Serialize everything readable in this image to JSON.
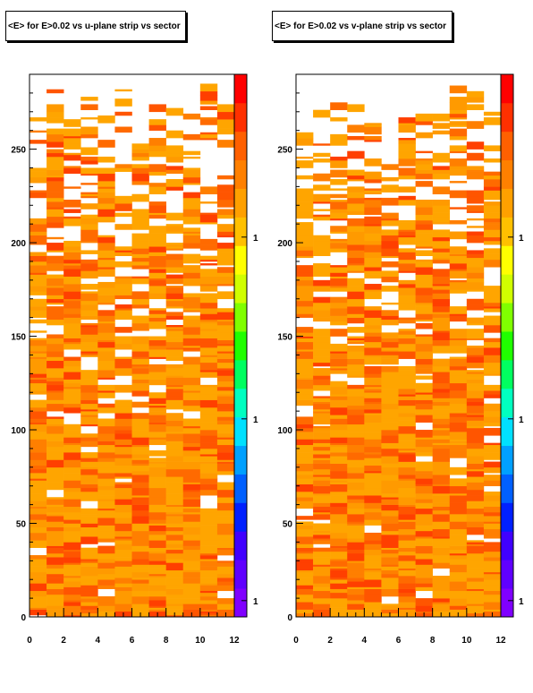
{
  "chart_data": [
    {
      "type": "heatmap",
      "title": "<E> for E>0.02 vs u-plane strip vs sector",
      "xlabel": "",
      "ylabel": "",
      "x_range": [
        0,
        12
      ],
      "y_range": [
        0,
        290
      ],
      "x_ticks": [
        "0",
        "2",
        "4",
        "6",
        "8",
        "10",
        "12"
      ],
      "y_ticks": [
        "0",
        "50",
        "100",
        "150",
        "200",
        "250"
      ],
      "columns": 12,
      "rows": 290,
      "column_extent": [
        268,
        282,
        265,
        280,
        265,
        282,
        265,
        272,
        270,
        268,
        284,
        272
      ],
      "gap_density": [
        0.03,
        0.06,
        0.1,
        0.18,
        0.32
      ],
      "colorbar_labels": [
        "1",
        "1",
        "1"
      ],
      "value_range": [
        0,
        1
      ]
    },
    {
      "type": "heatmap",
      "title": "<E> for E>0.02 vs v-plane strip vs sector",
      "xlabel": "",
      "ylabel": "",
      "x_range": [
        0,
        12
      ],
      "y_range": [
        0,
        290
      ],
      "x_ticks": [
        "0",
        "2",
        "4",
        "6",
        "8",
        "10",
        "12"
      ],
      "y_ticks": [
        "0",
        "50",
        "100",
        "150",
        "200",
        "250"
      ],
      "columns": 12,
      "rows": 290,
      "column_extent": [
        262,
        272,
        278,
        275,
        270,
        265,
        268,
        272,
        270,
        281,
        279,
        272
      ],
      "gap_density": [
        0.03,
        0.06,
        0.1,
        0.18,
        0.32
      ],
      "colorbar_labels": [
        "1",
        "1",
        "1"
      ],
      "value_range": [
        0,
        1
      ]
    }
  ],
  "colors": {
    "bg": "#ffffff",
    "frame": "#000000",
    "cell_palette": [
      "#ffa500",
      "#ff9a00",
      "#ff7f00",
      "#ff6a00",
      "#ff5500",
      "#ff3f00"
    ],
    "colorbar": [
      "#8000ff",
      "#6000ff",
      "#4000ff",
      "#0020ff",
      "#0060ff",
      "#00a0ff",
      "#00e0ff",
      "#00ffc0",
      "#00ff60",
      "#20ff00",
      "#80ff00",
      "#d0ff00",
      "#ffff00",
      "#ffc000",
      "#ffa000",
      "#ff8000",
      "#ff6000",
      "#ff3000",
      "#ff0000"
    ]
  }
}
